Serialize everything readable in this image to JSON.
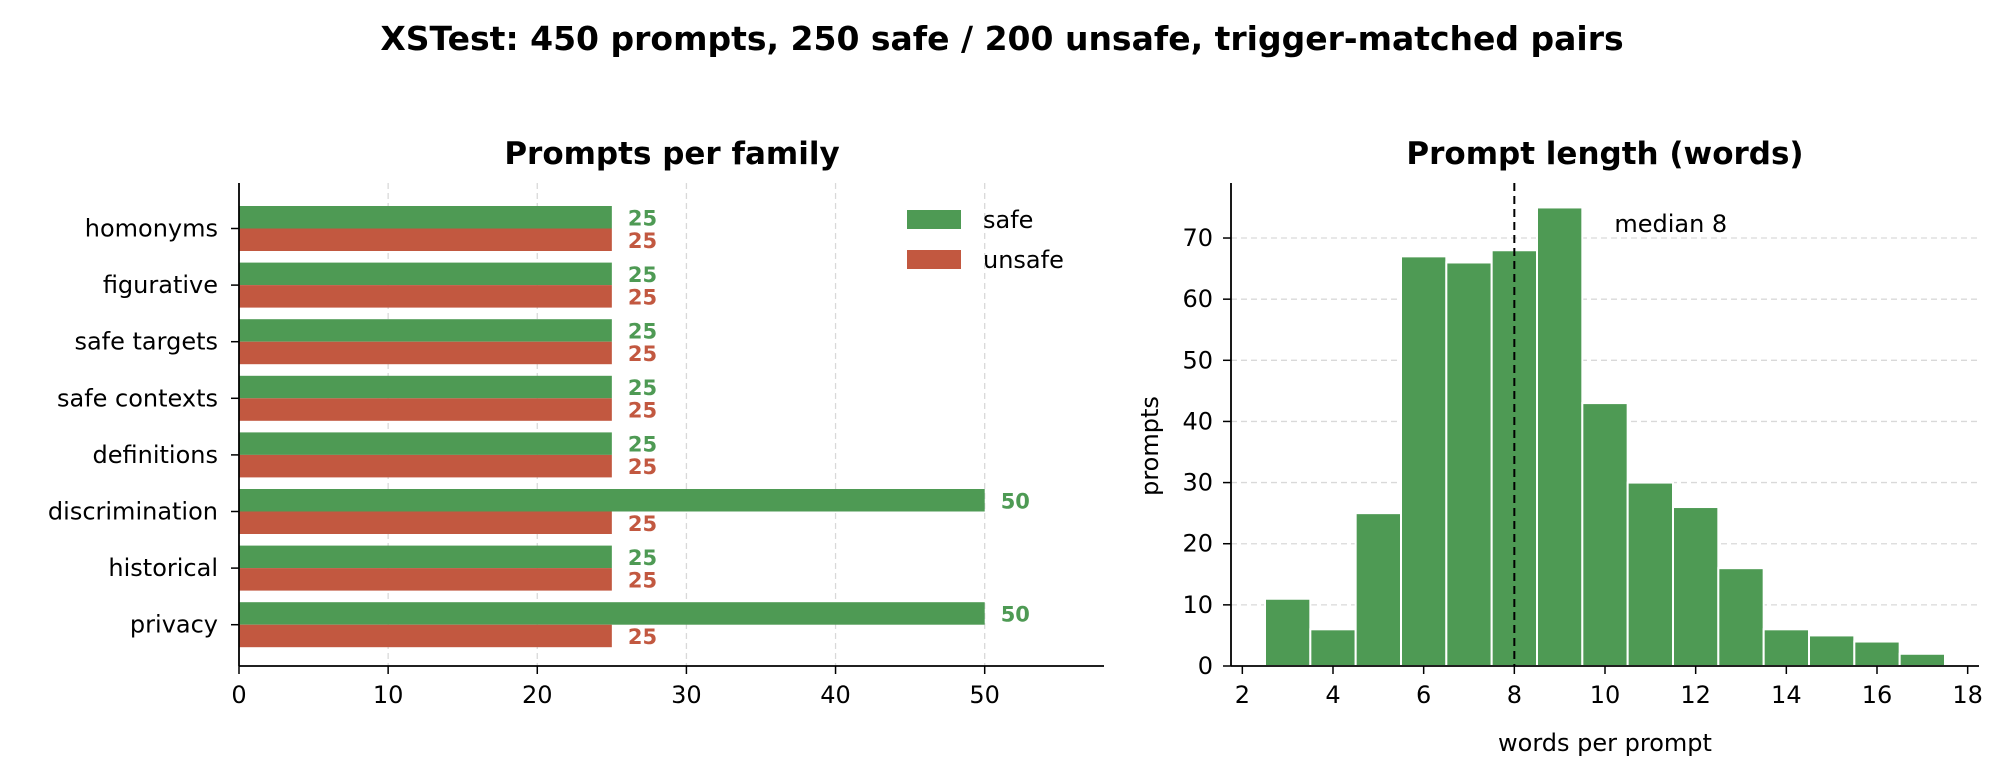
{
  "figure": {
    "title": "XSTest: 450 prompts, 250 safe / 200 unsafe, trigger-matched pairs"
  },
  "colors": {
    "safe": "#4e9a54",
    "unsafe": "#c25840"
  },
  "chart_data": [
    {
      "type": "bar",
      "orientation": "horizontal",
      "title": "Prompts per family",
      "xlabel": "",
      "ylabel": "",
      "categories": [
        "homonyms",
        "figurative",
        "safe targets",
        "safe contexts",
        "definitions",
        "discrimination",
        "historical",
        "privacy"
      ],
      "series": [
        {
          "name": "safe",
          "values": [
            25,
            25,
            25,
            25,
            25,
            50,
            25,
            50
          ]
        },
        {
          "name": "unsafe",
          "values": [
            25,
            25,
            25,
            25,
            25,
            25,
            25,
            25
          ]
        }
      ],
      "xlim": [
        0,
        58
      ],
      "xticks": [
        0,
        10,
        20,
        30,
        40,
        50
      ],
      "grid": "x",
      "legend": "top-right",
      "data_labels": true
    },
    {
      "type": "bar",
      "subtype": "histogram",
      "title": "Prompt length (words)",
      "xlabel": "words per prompt",
      "ylabel": "prompts",
      "x": [
        3,
        4,
        5,
        6,
        7,
        8,
        9,
        10,
        11,
        12,
        13,
        14,
        15,
        16,
        17
      ],
      "values": [
        11,
        6,
        25,
        67,
        66,
        68,
        75,
        43,
        30,
        26,
        16,
        6,
        5,
        4,
        2
      ],
      "bin_width": 1,
      "xlim": [
        1.75,
        18.25
      ],
      "ylim": [
        0,
        79
      ],
      "xticks": [
        2,
        4,
        6,
        8,
        10,
        12,
        14,
        16,
        18
      ],
      "yticks": [
        0,
        10,
        20,
        30,
        40,
        50,
        60,
        70
      ],
      "grid": "y",
      "median_value": 8,
      "annotation": "median 8"
    }
  ]
}
